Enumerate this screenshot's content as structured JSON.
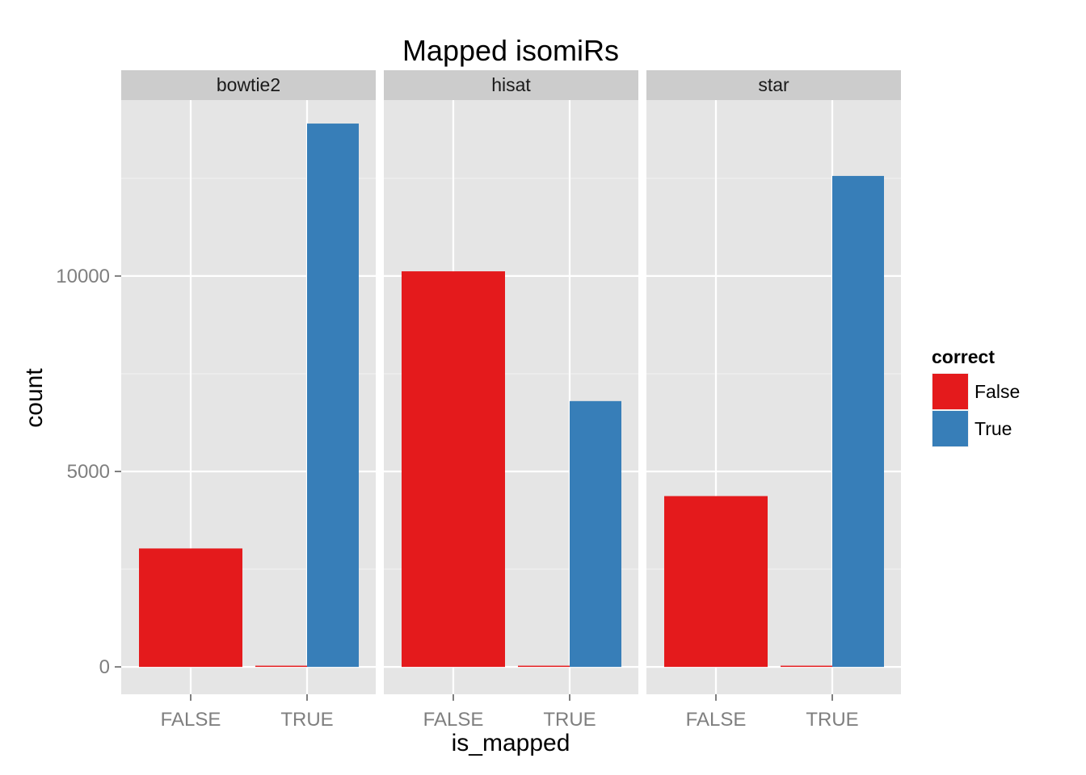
{
  "chart_data": {
    "type": "bar",
    "title": "Mapped isomiRs",
    "xlabel": "is_mapped",
    "ylabel": "count",
    "ylim": [
      -700,
      14500
    ],
    "yticks": [
      0,
      5000,
      10000
    ],
    "yticklabels": [
      "0",
      "5000",
      "10000"
    ],
    "categories": [
      "FALSE",
      "TRUE"
    ],
    "facets": [
      {
        "name": "bowtie2",
        "bars": [
          {
            "x": "FALSE",
            "correct": "False",
            "value": 3030
          },
          {
            "x": "TRUE",
            "correct": "False",
            "value": 30
          },
          {
            "x": "TRUE",
            "correct": "True",
            "value": 13900
          }
        ]
      },
      {
        "name": "hisat",
        "bars": [
          {
            "x": "FALSE",
            "correct": "False",
            "value": 10120
          },
          {
            "x": "TRUE",
            "correct": "False",
            "value": 15
          },
          {
            "x": "TRUE",
            "correct": "True",
            "value": 6800
          }
        ]
      },
      {
        "name": "star",
        "bars": [
          {
            "x": "FALSE",
            "correct": "False",
            "value": 4370
          },
          {
            "x": "TRUE",
            "correct": "False",
            "value": 15
          },
          {
            "x": "TRUE",
            "correct": "True",
            "value": 12560
          }
        ]
      }
    ],
    "legend": {
      "title": "correct",
      "placement": "right",
      "entries": [
        {
          "label": "False",
          "color": "#E41A1C"
        },
        {
          "label": "True",
          "color": "#377EB8"
        }
      ]
    },
    "grid": true,
    "colors": {
      "panel_background": "#E5E5E5",
      "strip_background": "#CCCCCC",
      "grid_major": "#FFFFFF",
      "grid_minor": "#F2F2F2"
    }
  }
}
